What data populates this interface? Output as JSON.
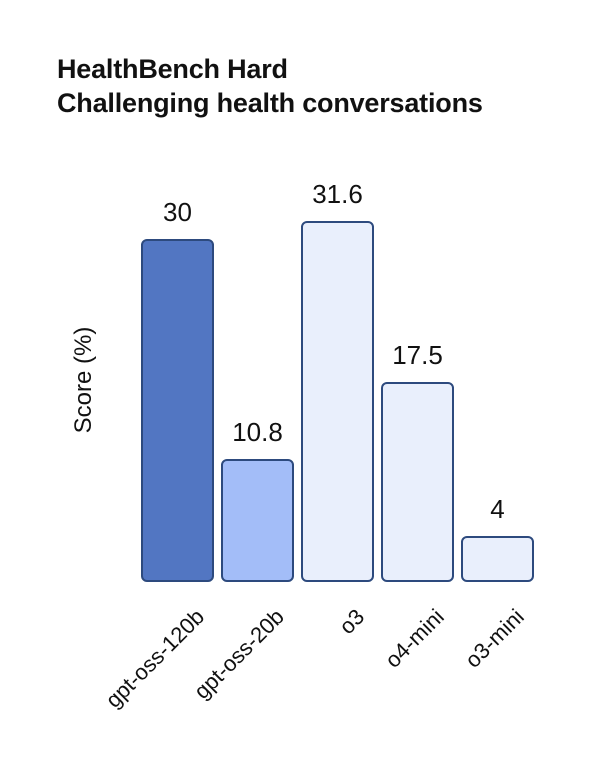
{
  "chart_data": {
    "type": "bar",
    "title": "HealthBench Hard",
    "subtitle": "Challenging health conversations",
    "ylabel": "Score (%)",
    "xlabel": "",
    "categories": [
      "gpt-oss-120b",
      "gpt-oss-20b",
      "o3",
      "o4-mini",
      "o3-mini"
    ],
    "values": [
      30,
      10.8,
      31.6,
      17.5,
      4
    ],
    "value_labels": [
      "30",
      "10.8",
      "31.6",
      "17.5",
      "4"
    ],
    "ylim": [
      0,
      35
    ],
    "grid": false,
    "legend": "none",
    "tick_label_rotation_deg": 45,
    "bar_fill_colors": [
      "#5276c2",
      "#a3bdf8",
      "#e9effc",
      "#e9effc",
      "#e9effc"
    ],
    "bar_border_color": "#2d4a7e",
    "background": "#ffffff",
    "text_color": "#111111"
  }
}
